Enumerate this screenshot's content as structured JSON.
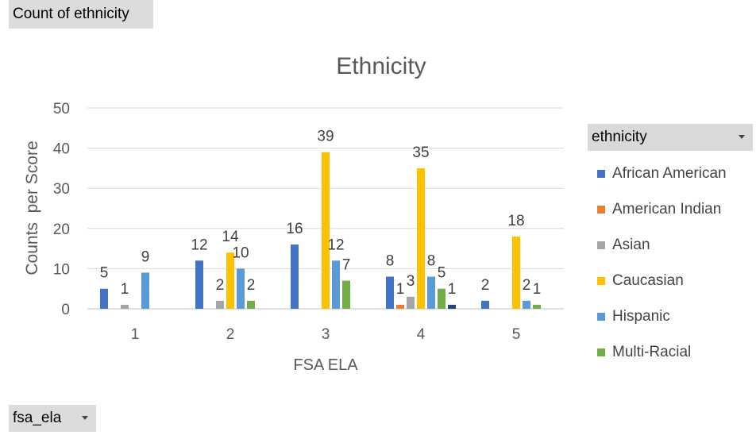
{
  "pivot": {
    "values_field": "Count of ethnicity",
    "legend_field": "ethnicity",
    "axis_field": "fsa_ela"
  },
  "chart_data": {
    "type": "bar",
    "title": "Ethnicity",
    "xlabel": "FSA ELA",
    "ylabel": "Counts  per Score",
    "ylim": [
      0,
      50
    ],
    "yticks": [
      "0",
      "10",
      "20",
      "30",
      "40",
      "50"
    ],
    "categories": [
      "1",
      "2",
      "3",
      "4",
      "5"
    ],
    "grid": true,
    "legend_position": "right",
    "series": [
      {
        "name": "African American",
        "color": "#4472c4",
        "values": [
          5,
          12,
          16,
          8,
          2
        ]
      },
      {
        "name": "American Indian",
        "color": "#ed7d31",
        "values": [
          0,
          0,
          0,
          1,
          0
        ]
      },
      {
        "name": "Asian",
        "color": "#a5a5a5",
        "values": [
          1,
          2,
          0,
          3,
          0
        ]
      },
      {
        "name": "Caucasian",
        "color": "#ffc000",
        "values": [
          0,
          14,
          39,
          35,
          18
        ]
      },
      {
        "name": "Hispanic",
        "color": "#5b9bd5",
        "values": [
          9,
          10,
          12,
          8,
          2
        ]
      },
      {
        "name": "Multi-Racial",
        "color": "#70ad47",
        "values": [
          0,
          2,
          7,
          5,
          1
        ]
      },
      {
        "name": "",
        "color": "#264478",
        "values": [
          0,
          0,
          0,
          1,
          0
        ]
      }
    ],
    "data_labels": [
      [
        "5",
        "",
        "1",
        "",
        "9",
        "",
        ""
      ],
      [
        "12",
        "",
        "2",
        "14",
        "10",
        "2",
        ""
      ],
      [
        "16",
        "",
        "",
        "39",
        "12",
        "7",
        ""
      ],
      [
        "8",
        "1",
        "3",
        "35",
        "8",
        "5",
        "1"
      ],
      [
        "2",
        "",
        "",
        "18",
        "2",
        "1",
        ""
      ]
    ]
  }
}
